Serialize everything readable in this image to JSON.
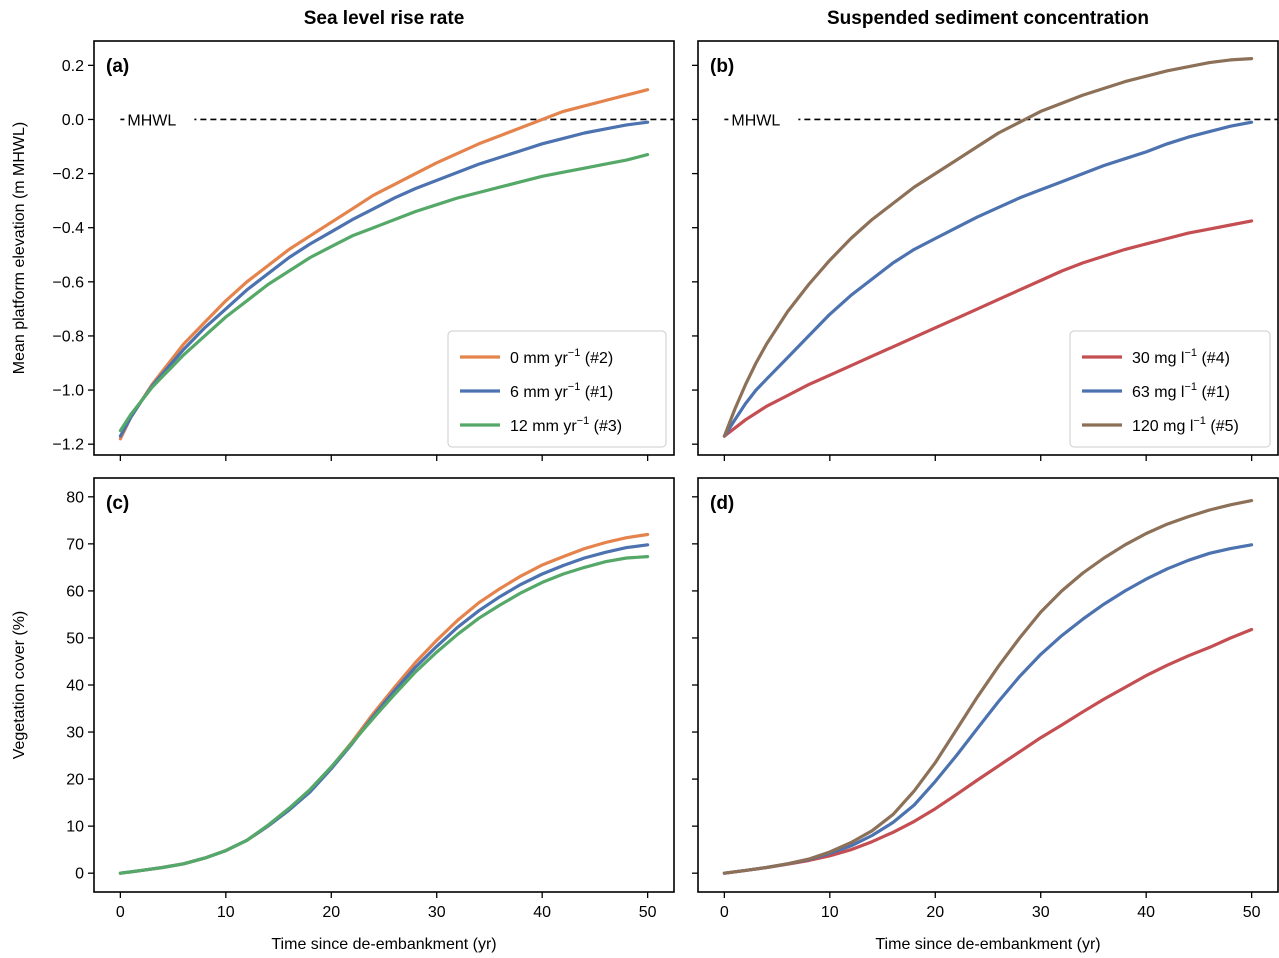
{
  "colors": {
    "orange": "#e5834c",
    "blue": "#4c72b0",
    "green": "#55a868",
    "red": "#c44e52",
    "brown": "#8c7058"
  },
  "column_titles": [
    "Sea level rise rate",
    "Suspended sediment concentration"
  ],
  "chart_data": [
    {
      "panel": "(a)",
      "type": "line",
      "title": "Sea level rise rate",
      "xlabel": "",
      "ylabel": "Mean platform elevation (m MHWL)",
      "xlim": [
        -2.5,
        52.5
      ],
      "ylim": [
        -1.24,
        0.29
      ],
      "xticks": [
        0,
        10,
        20,
        30,
        40,
        50
      ],
      "yticks": [
        -1.2,
        -1.0,
        -0.8,
        -0.6,
        -0.4,
        -0.2,
        0.0,
        0.2
      ],
      "ytick_labels": [
        "−1.2",
        "−1.0",
        "−0.8",
        "−0.6",
        "−0.4",
        "−0.2",
        "0.0",
        "0.2"
      ],
      "reference_line": {
        "y": 0.0,
        "label": "MHWL"
      },
      "legend": "lower-right",
      "series": [
        {
          "name_main": "0 mm yr",
          "name_sup": "−1",
          "name_tail": " (#2)",
          "color": "orange",
          "x": [
            0,
            1,
            2,
            3,
            4,
            5,
            6,
            8,
            10,
            12,
            14,
            16,
            18,
            20,
            22,
            24,
            26,
            28,
            30,
            32,
            34,
            36,
            38,
            40,
            42,
            44,
            46,
            48,
            50
          ],
          "y": [
            -1.18,
            -1.1,
            -1.04,
            -0.98,
            -0.93,
            -0.88,
            -0.83,
            -0.75,
            -0.67,
            -0.6,
            -0.54,
            -0.48,
            -0.43,
            -0.38,
            -0.33,
            -0.28,
            -0.24,
            -0.2,
            -0.16,
            -0.125,
            -0.09,
            -0.06,
            -0.03,
            0.0,
            0.03,
            0.05,
            0.07,
            0.09,
            0.11
          ]
        },
        {
          "name_main": "6 mm yr",
          "name_sup": "−1",
          "name_tail": " (#1)",
          "color": "blue",
          "x": [
            0,
            1,
            2,
            3,
            4,
            5,
            6,
            8,
            10,
            12,
            14,
            16,
            18,
            20,
            22,
            24,
            26,
            28,
            30,
            32,
            34,
            36,
            38,
            40,
            42,
            44,
            46,
            48,
            50
          ],
          "y": [
            -1.17,
            -1.1,
            -1.04,
            -0.985,
            -0.94,
            -0.895,
            -0.85,
            -0.77,
            -0.7,
            -0.63,
            -0.57,
            -0.51,
            -0.46,
            -0.415,
            -0.37,
            -0.33,
            -0.29,
            -0.255,
            -0.225,
            -0.195,
            -0.165,
            -0.14,
            -0.115,
            -0.09,
            -0.07,
            -0.05,
            -0.035,
            -0.02,
            -0.01
          ]
        },
        {
          "name_main": "12 mm yr",
          "name_sup": "−1",
          "name_tail": " (#3)",
          "color": "green",
          "x": [
            0,
            1,
            2,
            3,
            4,
            5,
            6,
            8,
            10,
            12,
            14,
            16,
            18,
            20,
            22,
            24,
            26,
            28,
            30,
            32,
            34,
            36,
            38,
            40,
            42,
            44,
            46,
            48,
            50
          ],
          "y": [
            -1.15,
            -1.09,
            -1.04,
            -0.99,
            -0.95,
            -0.91,
            -0.87,
            -0.8,
            -0.73,
            -0.67,
            -0.61,
            -0.56,
            -0.51,
            -0.47,
            -0.43,
            -0.4,
            -0.37,
            -0.34,
            -0.315,
            -0.29,
            -0.27,
            -0.25,
            -0.23,
            -0.21,
            -0.195,
            -0.18,
            -0.165,
            -0.15,
            -0.13
          ]
        }
      ]
    },
    {
      "panel": "(b)",
      "type": "line",
      "title": "Suspended sediment concentration",
      "xlabel": "",
      "ylabel": "",
      "xlim": [
        -2.5,
        52.5
      ],
      "ylim": [
        -1.24,
        0.29
      ],
      "xticks": [
        0,
        10,
        20,
        30,
        40,
        50
      ],
      "yticks": [
        -1.2,
        -1.0,
        -0.8,
        -0.6,
        -0.4,
        -0.2,
        0.0,
        0.2
      ],
      "reference_line": {
        "y": 0.0,
        "label": "MHWL"
      },
      "legend": "lower-right",
      "series": [
        {
          "name_main": "30 mg l",
          "name_sup": "−1",
          "name_tail": " (#4)",
          "color": "red",
          "x": [
            0,
            2,
            4,
            6,
            8,
            10,
            12,
            14,
            16,
            18,
            20,
            22,
            24,
            26,
            28,
            30,
            32,
            34,
            36,
            38,
            40,
            42,
            44,
            46,
            48,
            50
          ],
          "y": [
            -1.17,
            -1.11,
            -1.06,
            -1.02,
            -0.98,
            -0.945,
            -0.91,
            -0.875,
            -0.84,
            -0.805,
            -0.77,
            -0.735,
            -0.7,
            -0.665,
            -0.63,
            -0.595,
            -0.56,
            -0.53,
            -0.505,
            -0.48,
            -0.46,
            -0.44,
            -0.42,
            -0.405,
            -0.39,
            -0.375
          ]
        },
        {
          "name_main": "63 mg l",
          "name_sup": "−1",
          "name_tail": " (#1)",
          "color": "blue",
          "x": [
            0,
            1,
            2,
            3,
            4,
            6,
            8,
            10,
            12,
            14,
            16,
            18,
            20,
            22,
            24,
            26,
            28,
            30,
            32,
            34,
            36,
            38,
            40,
            42,
            44,
            46,
            48,
            50
          ],
          "y": [
            -1.17,
            -1.11,
            -1.05,
            -1.0,
            -0.96,
            -0.88,
            -0.8,
            -0.72,
            -0.65,
            -0.59,
            -0.53,
            -0.48,
            -0.44,
            -0.4,
            -0.36,
            -0.325,
            -0.29,
            -0.26,
            -0.23,
            -0.2,
            -0.17,
            -0.145,
            -0.12,
            -0.09,
            -0.065,
            -0.045,
            -0.025,
            -0.01
          ]
        },
        {
          "name_main": "120 mg l",
          "name_sup": "−1",
          "name_tail": " (#5)",
          "color": "brown",
          "x": [
            0,
            1,
            2,
            3,
            4,
            5,
            6,
            8,
            10,
            12,
            14,
            16,
            18,
            20,
            22,
            24,
            26,
            28,
            30,
            32,
            34,
            36,
            38,
            40,
            42,
            44,
            46,
            48,
            50
          ],
          "y": [
            -1.17,
            -1.07,
            -0.98,
            -0.9,
            -0.83,
            -0.77,
            -0.71,
            -0.61,
            -0.52,
            -0.44,
            -0.37,
            -0.31,
            -0.25,
            -0.2,
            -0.15,
            -0.1,
            -0.05,
            -0.01,
            0.03,
            0.06,
            0.09,
            0.115,
            0.14,
            0.16,
            0.18,
            0.195,
            0.21,
            0.22,
            0.225
          ]
        }
      ]
    },
    {
      "panel": "(c)",
      "type": "line",
      "title": "",
      "xlabel": "Time since de-embankment (yr)",
      "ylabel": "Vegetation cover (%)",
      "xlim": [
        -2.5,
        52.5
      ],
      "ylim": [
        -4.0,
        84.0
      ],
      "xticks": [
        0,
        10,
        20,
        30,
        40,
        50
      ],
      "yticks": [
        0,
        10,
        20,
        30,
        40,
        50,
        60,
        70,
        80
      ],
      "ytick_labels": [
        "0",
        "10",
        "20",
        "30",
        "40",
        "50",
        "60",
        "70",
        "80"
      ],
      "series": [
        {
          "name": "0 mm yr−1 (#2)",
          "color": "orange",
          "x": [
            0,
            2,
            4,
            6,
            8,
            10,
            12,
            14,
            16,
            18,
            20,
            22,
            24,
            26,
            28,
            30,
            32,
            34,
            36,
            38,
            40,
            42,
            44,
            46,
            48,
            50
          ],
          "y": [
            0,
            0.6,
            1.2,
            2.0,
            3.2,
            4.8,
            7.0,
            10.0,
            13.5,
            17.5,
            22.5,
            28.0,
            34.0,
            39.5,
            44.8,
            49.5,
            53.8,
            57.5,
            60.5,
            63.2,
            65.5,
            67.3,
            69.0,
            70.3,
            71.3,
            72.0
          ]
        },
        {
          "name": "6 mm yr−1 (#1)",
          "color": "blue",
          "x": [
            0,
            2,
            4,
            6,
            8,
            10,
            12,
            14,
            16,
            18,
            20,
            22,
            24,
            26,
            28,
            30,
            32,
            34,
            36,
            38,
            40,
            42,
            44,
            46,
            48,
            50
          ],
          "y": [
            0,
            0.6,
            1.2,
            2.0,
            3.2,
            4.8,
            7.0,
            10.0,
            13.4,
            17.3,
            22.2,
            27.6,
            33.4,
            38.8,
            43.8,
            48.2,
            52.3,
            55.8,
            58.8,
            61.4,
            63.6,
            65.4,
            67.0,
            68.2,
            69.2,
            69.8
          ]
        },
        {
          "name": "12 mm yr−1 (#3)",
          "color": "green",
          "x": [
            0,
            2,
            4,
            6,
            8,
            10,
            12,
            14,
            16,
            18,
            20,
            22,
            24,
            26,
            28,
            30,
            32,
            34,
            36,
            38,
            40,
            42,
            44,
            46,
            48,
            50
          ],
          "y": [
            0,
            0.6,
            1.2,
            2.0,
            3.2,
            4.8,
            7.0,
            10.2,
            13.8,
            17.8,
            22.6,
            27.8,
            33.0,
            38.0,
            42.8,
            47.0,
            50.8,
            54.2,
            57.0,
            59.6,
            61.8,
            63.6,
            65.0,
            66.2,
            67.0,
            67.3
          ]
        }
      ]
    },
    {
      "panel": "(d)",
      "type": "line",
      "title": "",
      "xlabel": "Time since de-embankment (yr)",
      "ylabel": "",
      "xlim": [
        -2.5,
        52.5
      ],
      "ylim": [
        -4.0,
        84.0
      ],
      "xticks": [
        0,
        10,
        20,
        30,
        40,
        50
      ],
      "yticks": [
        0,
        10,
        20,
        30,
        40,
        50,
        60,
        70,
        80
      ],
      "series": [
        {
          "name": "30 mg l−1 (#4)",
          "color": "red",
          "x": [
            0,
            2,
            4,
            6,
            8,
            10,
            12,
            14,
            16,
            18,
            20,
            22,
            24,
            26,
            28,
            30,
            32,
            34,
            36,
            38,
            40,
            42,
            44,
            46,
            48,
            50
          ],
          "y": [
            0,
            0.6,
            1.2,
            1.9,
            2.7,
            3.7,
            5.0,
            6.7,
            8.7,
            11.0,
            13.7,
            16.7,
            19.8,
            22.8,
            25.8,
            28.8,
            31.5,
            34.3,
            37.0,
            39.5,
            42.0,
            44.2,
            46.2,
            48.0,
            50.0,
            51.8
          ]
        },
        {
          "name": "63 mg l−1 (#1)",
          "color": "blue",
          "x": [
            0,
            2,
            4,
            6,
            8,
            10,
            12,
            14,
            16,
            18,
            20,
            22,
            24,
            26,
            28,
            30,
            32,
            34,
            36,
            38,
            40,
            42,
            44,
            46,
            48,
            50
          ],
          "y": [
            0,
            0.6,
            1.2,
            2.0,
            2.9,
            4.2,
            5.8,
            8.0,
            10.8,
            14.5,
            19.5,
            25.0,
            30.8,
            36.5,
            41.8,
            46.5,
            50.5,
            54.0,
            57.2,
            60.0,
            62.5,
            64.7,
            66.5,
            68.0,
            69.0,
            69.8
          ]
        },
        {
          "name": "120 mg l−1 (#5)",
          "color": "brown",
          "x": [
            0,
            2,
            4,
            6,
            8,
            10,
            12,
            14,
            16,
            18,
            20,
            22,
            24,
            26,
            28,
            30,
            32,
            34,
            36,
            38,
            40,
            42,
            44,
            46,
            48,
            50
          ],
          "y": [
            0,
            0.6,
            1.2,
            2.0,
            3.0,
            4.5,
            6.5,
            9.0,
            12.5,
            17.5,
            23.5,
            30.5,
            37.5,
            44.0,
            50.0,
            55.5,
            60.0,
            63.8,
            67.0,
            69.8,
            72.2,
            74.2,
            75.8,
            77.2,
            78.3,
            79.2
          ]
        }
      ]
    }
  ]
}
